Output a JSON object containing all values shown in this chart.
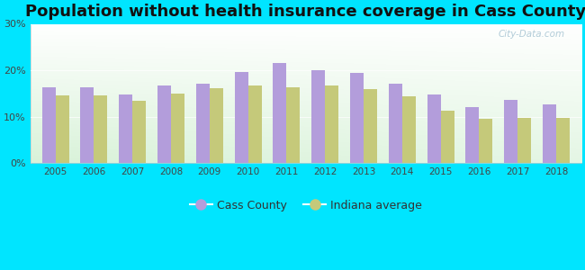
{
  "title": "Population without health insurance coverage in Cass County",
  "years": [
    2005,
    2006,
    2007,
    2008,
    2009,
    2010,
    2011,
    2012,
    2013,
    2014,
    2015,
    2016,
    2017,
    2018
  ],
  "cass_county": [
    16.4,
    16.3,
    14.7,
    16.7,
    17.0,
    19.7,
    21.5,
    20.0,
    19.5,
    17.0,
    14.8,
    12.1,
    13.6,
    12.6
  ],
  "indiana_avg": [
    14.6,
    14.6,
    13.4,
    15.0,
    16.2,
    16.8,
    16.4,
    16.7,
    16.0,
    14.4,
    11.3,
    9.6,
    9.7,
    9.7
  ],
  "cass_color": "#b39ddb",
  "indiana_color": "#c5c97a",
  "bg_outer": "#00e5ff",
  "ylim": [
    0,
    30
  ],
  "yticks": [
    0,
    10,
    20,
    30
  ],
  "ytick_labels": [
    "0%",
    "10%",
    "20%",
    "30%"
  ],
  "bar_width": 0.35,
  "legend_cass": "Cass County",
  "legend_indiana": "Indiana average",
  "title_fontsize": 13,
  "watermark": "City-Data.com"
}
